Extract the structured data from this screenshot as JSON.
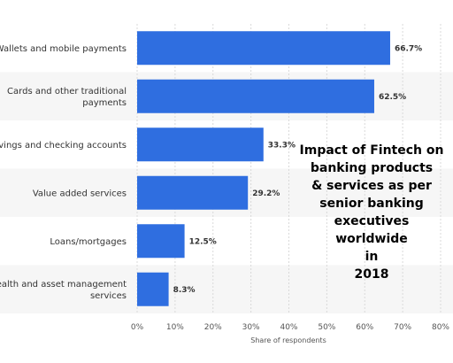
{
  "chart_data": {
    "type": "bar",
    "orientation": "horizontal",
    "categories": [
      [
        "Wallets and mobile payments"
      ],
      [
        "Cards and other traditional",
        "payments"
      ],
      [
        "Savings and checking accounts"
      ],
      [
        "Value added services"
      ],
      [
        "Loans/mortgages"
      ],
      [
        "Wealth and asset management",
        "services"
      ]
    ],
    "values": [
      66.7,
      62.5,
      33.3,
      29.2,
      12.5,
      8.3
    ],
    "value_labels": [
      "66.7%",
      "62.5%",
      "33.3%",
      "29.2%",
      "12.5%",
      "8.3%"
    ],
    "xlim": [
      0,
      80
    ],
    "ticks": [
      "0%",
      "10%",
      "20%",
      "30%",
      "40%",
      "50%",
      "60%",
      "70%",
      "80%"
    ],
    "xlabel": "Share of respondents",
    "grid": true,
    "bar_color": "#2f6ee0"
  },
  "overlay_text": [
    "Impact of Fintech on",
    "banking products",
    "& services as per",
    "senior banking",
    "executives",
    "worldwide",
    "in",
    "2018"
  ]
}
